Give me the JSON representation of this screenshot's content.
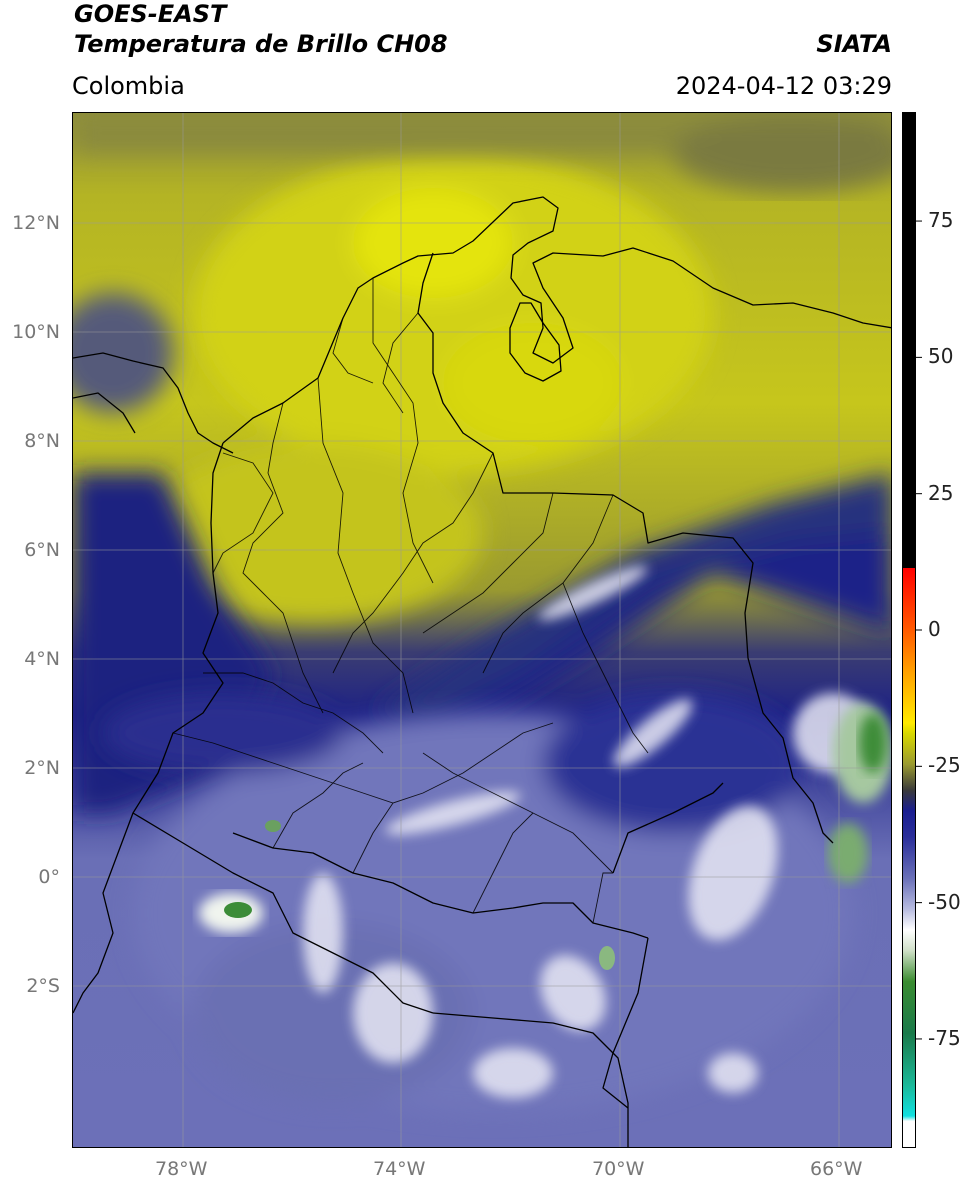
{
  "header": {
    "satellite": "GOES-EAST",
    "product": "Temperatura de Brillo CH08",
    "region": "Colombia",
    "agency": "SIATA",
    "datetime": "2024-04-12 03:29"
  },
  "map": {
    "lat_labels": [
      "12°N",
      "10°N",
      "8°N",
      "6°N",
      "4°N",
      "2°N",
      "0°",
      "2°S"
    ],
    "lon_labels": [
      "78°W",
      "74°W",
      "70°W",
      "66°W"
    ],
    "lat_values": [
      12,
      10,
      8,
      6,
      4,
      2,
      0,
      -2
    ],
    "lon_values": [
      -78,
      -74,
      -70,
      -66
    ],
    "extent": {
      "lon_min": -79.6,
      "lon_max": -64.6,
      "lat_min": -5.2,
      "lat_max": 13.95
    }
  },
  "colorbar": {
    "tick_labels": [
      "75",
      "50",
      "25",
      "0",
      "-25",
      "-50",
      "-75"
    ],
    "tick_values": [
      75,
      50,
      25,
      0,
      -25,
      -50,
      -75
    ],
    "range": [
      -95,
      95
    ]
  },
  "colors": {
    "warm_yellow": "#c4c41c",
    "cloud_navy": "#1a1e80",
    "cold_lavender": "#7a80c2",
    "deep_green": "#3c8c38"
  }
}
